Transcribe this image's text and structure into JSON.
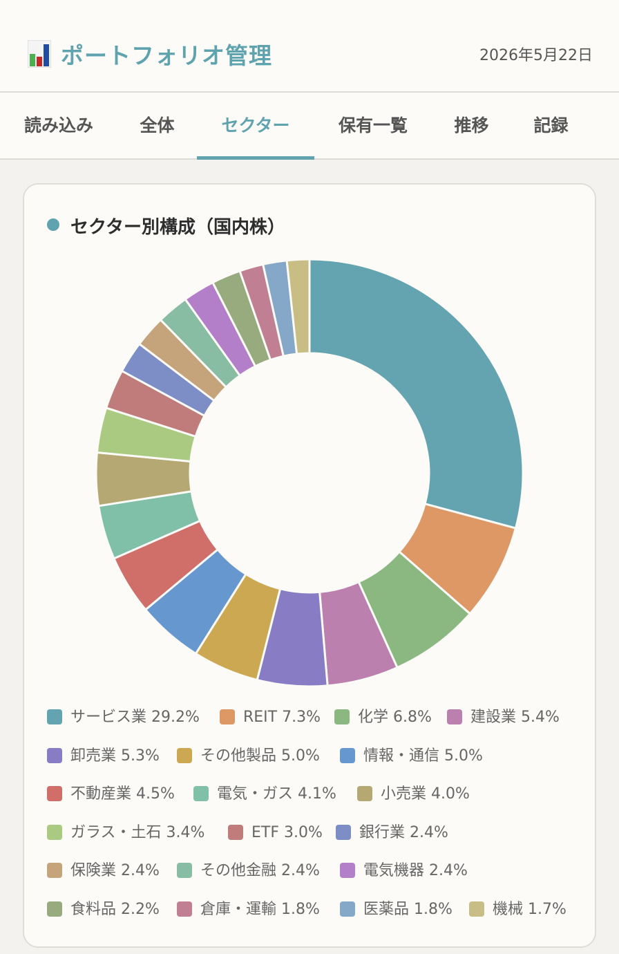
{
  "header": {
    "title": "ポートフォリオ管理",
    "date": "2026年5月22日",
    "logo_icon": "bar-chart-icon"
  },
  "tabs": [
    {
      "label": "読み込み",
      "active": false
    },
    {
      "label": "全体",
      "active": false
    },
    {
      "label": "セクター",
      "active": true
    },
    {
      "label": "保有一覧",
      "active": false
    },
    {
      "label": "推移",
      "active": false
    },
    {
      "label": "記録",
      "active": false
    }
  ],
  "card": {
    "title": "セクター別構成（国内株）"
  },
  "chart_data": {
    "type": "pie",
    "donut": true,
    "title": "セクター別構成（国内株）",
    "legend_position": "bottom",
    "slices": [
      {
        "name": "サービス業",
        "value": 29.2,
        "label": "29.2%",
        "color": "#63a4b0"
      },
      {
        "name": "REIT",
        "value": 7.3,
        "label": "7.3%",
        "color": "#dd9866"
      },
      {
        "name": "化学",
        "value": 6.8,
        "label": "6.8%",
        "color": "#8bb880"
      },
      {
        "name": "建設業",
        "value": 5.4,
        "label": "5.4%",
        "color": "#bb80ae"
      },
      {
        "name": "卸売業",
        "value": 5.3,
        "label": "5.3%",
        "color": "#887cc5"
      },
      {
        "name": "その他製品",
        "value": 5.0,
        "label": "5.0%",
        "color": "#cda853"
      },
      {
        "name": "情報・通信",
        "value": 5.0,
        "label": "5.0%",
        "color": "#6698cf"
      },
      {
        "name": "不動産業",
        "value": 4.5,
        "label": "4.5%",
        "color": "#d06e6a"
      },
      {
        "name": "電気・ガス",
        "value": 4.1,
        "label": "4.1%",
        "color": "#80c0a8"
      },
      {
        "name": "小売業",
        "value": 4.0,
        "label": "4.0%",
        "color": "#b6a872"
      },
      {
        "name": "ガラス・土石",
        "value": 3.4,
        "label": "3.4%",
        "color": "#a9ca80"
      },
      {
        "name": "ETF",
        "value": 3.0,
        "label": "3.0%",
        "color": "#c07c7a"
      },
      {
        "name": "銀行業",
        "value": 2.4,
        "label": "2.4%",
        "color": "#7d8ec7"
      },
      {
        "name": "保険業",
        "value": 2.4,
        "label": "2.4%",
        "color": "#c5a37b"
      },
      {
        "name": "その他金融",
        "value": 2.4,
        "label": "2.4%",
        "color": "#88bda4"
      },
      {
        "name": "電気機器",
        "value": 2.4,
        "label": "2.4%",
        "color": "#b37fc8"
      },
      {
        "name": "食料品",
        "value": 2.2,
        "label": "2.2%",
        "color": "#98ab7e"
      },
      {
        "name": "倉庫・運輸",
        "value": 1.8,
        "label": "1.8%",
        "color": "#c07f92"
      },
      {
        "name": "医薬品",
        "value": 1.8,
        "label": "1.8%",
        "color": "#85a8c8"
      },
      {
        "name": "機械",
        "value": 1.7,
        "label": "1.7%",
        "color": "#c8bd85"
      }
    ]
  }
}
